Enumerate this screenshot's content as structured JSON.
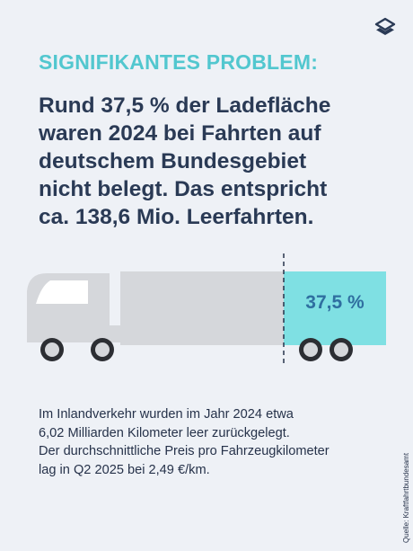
{
  "kicker": "SIGNIFIKANTES PROBLEM:",
  "headline_lines": [
    "Rund 37,5 % der Ladefläche",
    "waren 2024 bei Fahrten auf",
    "deutschem Bundesgebiet",
    "nicht belegt. Das entspricht",
    "ca. 138,6 Mio. Leerfahrten."
  ],
  "graphic": {
    "empty_share_label": "37,5 %",
    "empty_share_fraction": 0.375
  },
  "body_lines": [
    "Im Inlandverkehr wurden im Jahr 2024 etwa",
    "6,02 Milliarden Kilometer leer zurückgelegt.",
    "Der durchschnittliche Preis pro Fahrzeugkilometer",
    "lag in Q2 2025 bei 2,49 €/km."
  ],
  "source": "Quelle: Kraftfahrtbundesamt",
  "colors": {
    "background": "#eef1f6",
    "accent": "#52c7cf",
    "headline": "#2a3a55",
    "truck_grey": "#d5d7db",
    "empty_area": "#7fe0e3"
  }
}
